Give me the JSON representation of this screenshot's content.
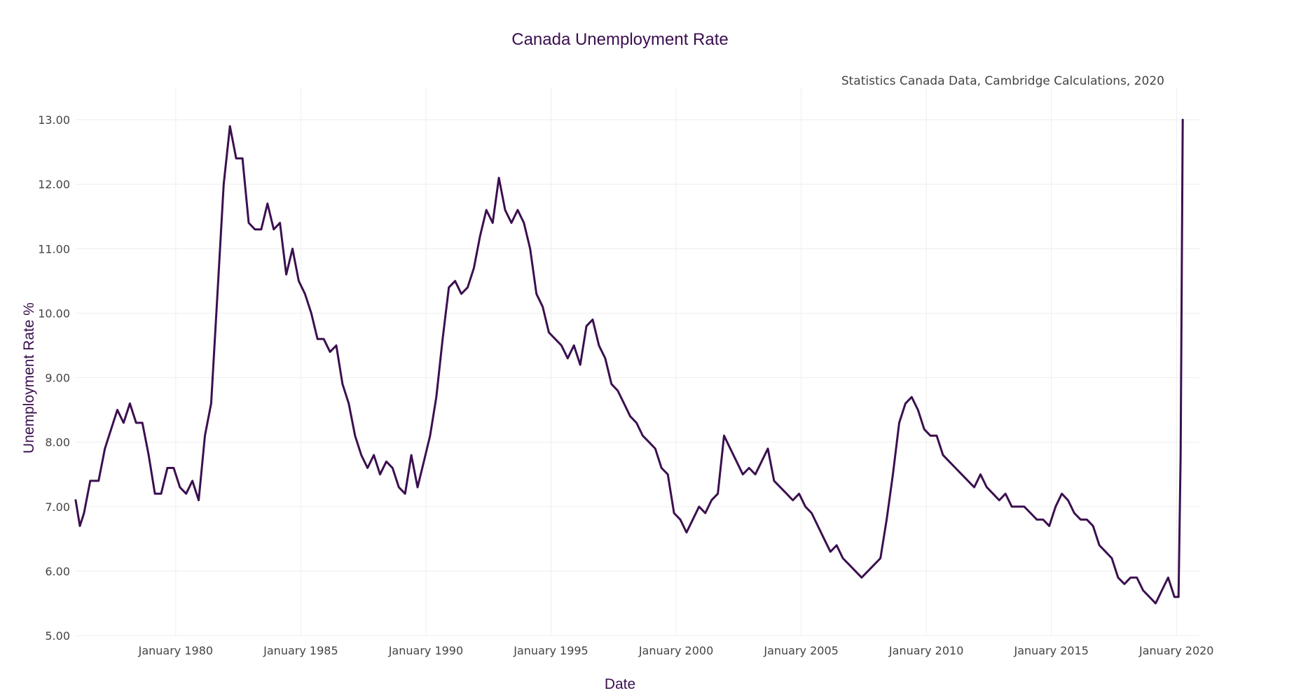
{
  "chart_data": {
    "type": "line",
    "title": "Canada Unemployment Rate",
    "subtitle": "Statistics Canada Data, Cambridge Calculations, 2020",
    "xlabel": "Date",
    "ylabel": "Unemployment Rate %",
    "xlim": [
      "1976-01",
      "2020-12"
    ],
    "ylim": [
      5,
      13.5
    ],
    "x_ticks": [
      {
        "value": "1980-01",
        "label": "January 1980"
      },
      {
        "value": "1985-01",
        "label": "January 1985"
      },
      {
        "value": "1990-01",
        "label": "January 1990"
      },
      {
        "value": "1995-01",
        "label": "January 1995"
      },
      {
        "value": "2000-01",
        "label": "January 2000"
      },
      {
        "value": "2005-01",
        "label": "January 2005"
      },
      {
        "value": "2010-01",
        "label": "January 2010"
      },
      {
        "value": "2015-01",
        "label": "January 2015"
      },
      {
        "value": "2020-01",
        "label": "January 2020"
      }
    ],
    "y_ticks": [
      {
        "value": 5,
        "label": "5.00"
      },
      {
        "value": 6,
        "label": "6.00"
      },
      {
        "value": 7,
        "label": "7.00"
      },
      {
        "value": 8,
        "label": "8.00"
      },
      {
        "value": 9,
        "label": "9.00"
      },
      {
        "value": 10,
        "label": "10.00"
      },
      {
        "value": 11,
        "label": "11.00"
      },
      {
        "value": 12,
        "label": "12.00"
      },
      {
        "value": 13,
        "label": "13.00"
      }
    ],
    "grid": true,
    "legend": "none",
    "colors": {
      "line": "#3b0f4f",
      "title": "#3b0f4f",
      "text": "#444444",
      "grid": "#eeeeee"
    },
    "series": [
      {
        "x": [
          "1976-01",
          "1976-03",
          "1976-05",
          "1976-08",
          "1976-12",
          "1977-03",
          "1977-06",
          "1977-09",
          "1977-12",
          "1978-03",
          "1978-06",
          "1978-09",
          "1978-12",
          "1979-03",
          "1979-06",
          "1979-09",
          "1979-12",
          "1980-03",
          "1980-06",
          "1980-09",
          "1980-12",
          "1981-03",
          "1981-06",
          "1981-09",
          "1981-12",
          "1982-03",
          "1982-06",
          "1982-09",
          "1982-12",
          "1983-03",
          "1983-06",
          "1983-09",
          "1983-12",
          "1984-03",
          "1984-06",
          "1984-09",
          "1984-12",
          "1985-03",
          "1985-06",
          "1985-09",
          "1985-12",
          "1986-03",
          "1986-06",
          "1986-09",
          "1986-12",
          "1987-03",
          "1987-06",
          "1987-09",
          "1987-12",
          "1988-03",
          "1988-06",
          "1988-09",
          "1988-12",
          "1989-03",
          "1989-06",
          "1989-09",
          "1989-12",
          "1990-03",
          "1990-06",
          "1990-09",
          "1990-12",
          "1991-03",
          "1991-06",
          "1991-09",
          "1991-12",
          "1992-03",
          "1992-06",
          "1992-09",
          "1992-12",
          "1993-03",
          "1993-06",
          "1993-09",
          "1993-12",
          "1994-03",
          "1994-06",
          "1994-09",
          "1994-12",
          "1995-03",
          "1995-06",
          "1995-09",
          "1995-12",
          "1996-03",
          "1996-06",
          "1996-09",
          "1996-12",
          "1997-03",
          "1997-06",
          "1997-09",
          "1997-12",
          "1998-03",
          "1998-06",
          "1998-09",
          "1998-12",
          "1999-03",
          "1999-06",
          "1999-09",
          "1999-12",
          "2000-03",
          "2000-06",
          "2000-09",
          "2000-12",
          "2001-03",
          "2001-06",
          "2001-09",
          "2001-12",
          "2002-03",
          "2002-06",
          "2002-09",
          "2002-12",
          "2003-03",
          "2003-06",
          "2003-09",
          "2003-12",
          "2004-03",
          "2004-06",
          "2004-09",
          "2004-12",
          "2005-03",
          "2005-06",
          "2005-09",
          "2005-12",
          "2006-03",
          "2006-06",
          "2006-09",
          "2006-12",
          "2007-03",
          "2007-06",
          "2007-09",
          "2007-12",
          "2008-03",
          "2008-06",
          "2008-09",
          "2008-12",
          "2009-03",
          "2009-06",
          "2009-09",
          "2009-12",
          "2010-03",
          "2010-06",
          "2010-09",
          "2010-12",
          "2011-03",
          "2011-06",
          "2011-09",
          "2011-12",
          "2012-03",
          "2012-06",
          "2012-09",
          "2012-12",
          "2013-03",
          "2013-06",
          "2013-09",
          "2013-12",
          "2014-03",
          "2014-06",
          "2014-09",
          "2014-12",
          "2015-03",
          "2015-06",
          "2015-09",
          "2015-12",
          "2016-03",
          "2016-06",
          "2016-09",
          "2016-12",
          "2017-03",
          "2017-06",
          "2017-09",
          "2017-12",
          "2018-03",
          "2018-06",
          "2018-09",
          "2018-12",
          "2019-03",
          "2019-06",
          "2019-09",
          "2019-12",
          "2020-01",
          "2020-02",
          "2020-03",
          "2020-04"
        ],
        "values": [
          7.1,
          6.7,
          6.9,
          7.4,
          7.4,
          7.9,
          8.2,
          8.5,
          8.3,
          8.6,
          8.3,
          8.3,
          7.8,
          7.2,
          7.2,
          7.6,
          7.6,
          7.3,
          7.2,
          7.4,
          7.1,
          8.1,
          8.6,
          10.3,
          12.0,
          12.9,
          12.4,
          12.4,
          11.4,
          11.3,
          11.3,
          11.7,
          11.3,
          11.4,
          10.6,
          11.0,
          10.5,
          10.3,
          10.0,
          9.6,
          9.6,
          9.4,
          9.5,
          8.9,
          8.6,
          8.1,
          7.8,
          7.6,
          7.8,
          7.5,
          7.7,
          7.6,
          7.3,
          7.2,
          7.8,
          7.3,
          7.7,
          8.1,
          8.7,
          9.6,
          10.4,
          10.5,
          10.3,
          10.4,
          10.7,
          11.2,
          11.6,
          11.4,
          12.1,
          11.6,
          11.4,
          11.6,
          11.4,
          11.0,
          10.3,
          10.1,
          9.7,
          9.6,
          9.5,
          9.3,
          9.5,
          9.2,
          9.8,
          9.9,
          9.5,
          9.3,
          8.9,
          8.8,
          8.6,
          8.4,
          8.3,
          8.1,
          8.0,
          7.9,
          7.6,
          7.5,
          6.9,
          6.8,
          6.6,
          6.8,
          7.0,
          6.9,
          7.1,
          7.2,
          8.1,
          7.9,
          7.7,
          7.5,
          7.6,
          7.5,
          7.7,
          7.9,
          7.4,
          7.3,
          7.2,
          7.1,
          7.2,
          7.0,
          6.9,
          6.7,
          6.5,
          6.3,
          6.4,
          6.2,
          6.1,
          6.0,
          5.9,
          6.0,
          6.1,
          6.2,
          6.8,
          7.5,
          8.3,
          8.6,
          8.7,
          8.5,
          8.2,
          8.1,
          8.1,
          7.8,
          7.7,
          7.6,
          7.5,
          7.4,
          7.3,
          7.5,
          7.3,
          7.2,
          7.1,
          7.2,
          7.0,
          7.0,
          7.0,
          6.9,
          6.8,
          6.8,
          6.7,
          7.0,
          7.2,
          7.1,
          6.9,
          6.8,
          6.8,
          6.7,
          6.4,
          6.3,
          6.2,
          5.9,
          5.8,
          5.9,
          5.9,
          5.7,
          5.6,
          5.5,
          5.7,
          5.9,
          5.6,
          5.6,
          5.6,
          7.8,
          13.0
        ],
        "color": "#3b0f4f"
      }
    ]
  }
}
